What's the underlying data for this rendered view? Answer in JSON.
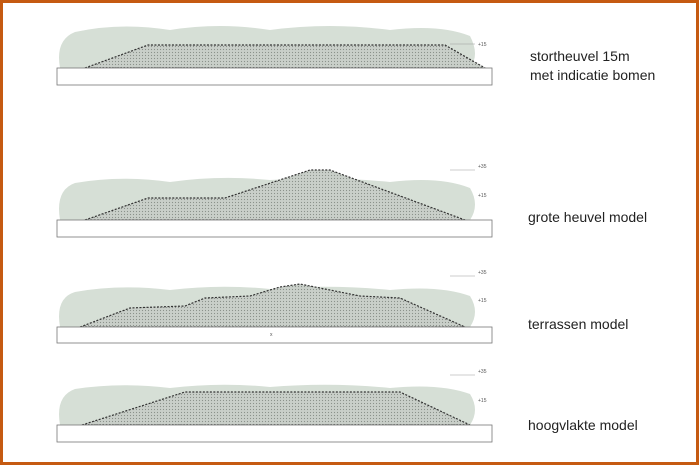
{
  "panels": [
    {
      "caption": [
        "stortheuvel 15m",
        "met indicatie bomen"
      ],
      "levels": [
        "+15"
      ]
    },
    {
      "caption": [
        "grote heuvel model"
      ],
      "levels": [
        "+35",
        "+15"
      ]
    },
    {
      "caption": [
        "terrassen model"
      ],
      "levels": [
        "+35",
        "+15"
      ],
      "base_mark": "x"
    },
    {
      "caption": [
        "hoogvlakte model"
      ],
      "levels": [
        "+35",
        "+15"
      ]
    }
  ]
}
